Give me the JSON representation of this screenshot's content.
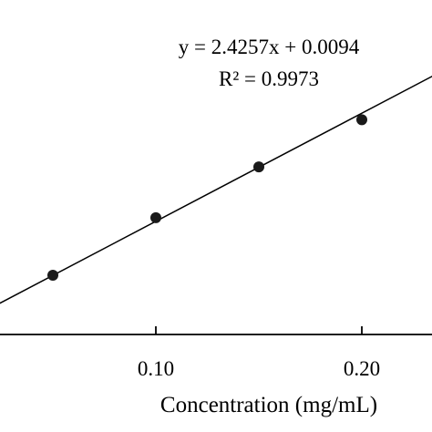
{
  "chart_data": {
    "type": "scatter",
    "title": "",
    "xlabel": "Concentration (mg/mL)",
    "ylabel": "",
    "x_ticks": [
      0.1,
      0.2
    ],
    "x_tick_labels": [
      "0.10",
      "0.20"
    ],
    "points": [
      {
        "x": 0.05,
        "y": 0.131
      },
      {
        "x": 0.1,
        "y": 0.26
      },
      {
        "x": 0.15,
        "y": 0.374
      },
      {
        "x": 0.2,
        "y": 0.48
      }
    ],
    "fit": {
      "slope": 2.4257,
      "intercept": 0.0094
    },
    "annotation": {
      "equation": "y = 2.4257x + 0.0094",
      "r_squared": "R² = 0.9973"
    },
    "grid": false,
    "colors": {
      "marker": "#1a1a1a",
      "line": "#000000",
      "axis": "#000000"
    }
  }
}
